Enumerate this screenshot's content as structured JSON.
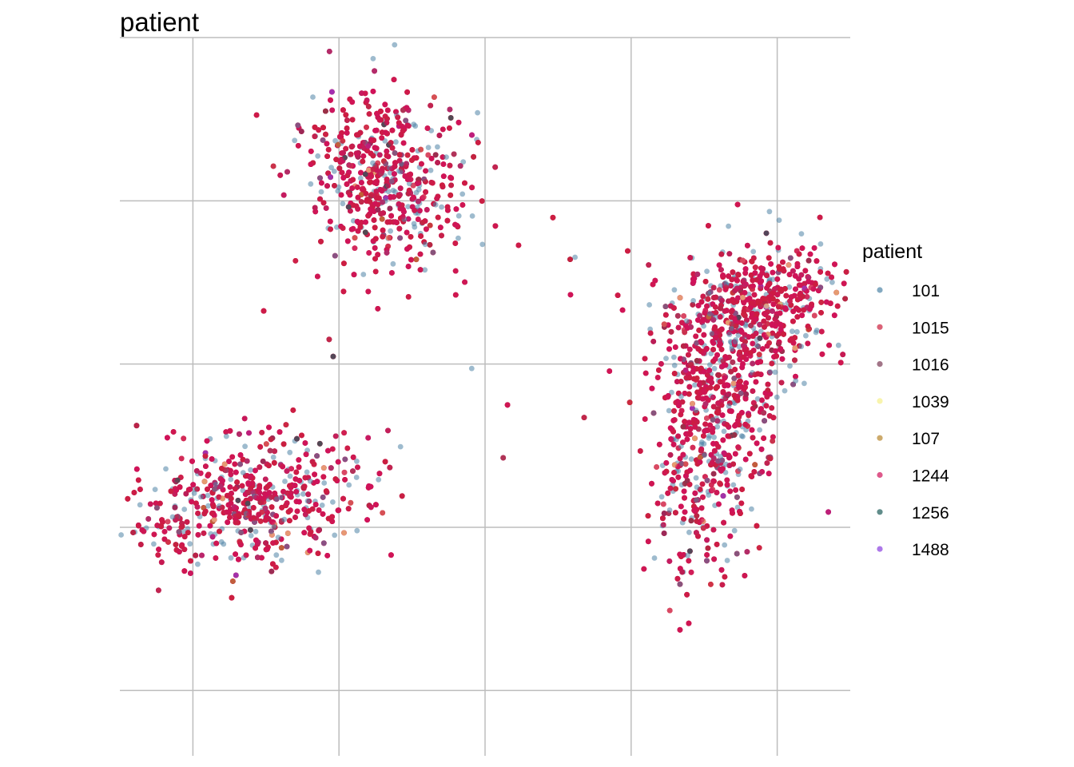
{
  "chart_data": {
    "type": "scatter",
    "title": "patient",
    "xlabel": "",
    "ylabel": "",
    "xlim": [
      -10,
      15
    ],
    "ylim": [
      -12,
      10
    ],
    "x_gridlines": [
      -7.5,
      -2.5,
      2.5,
      7.5,
      12.5
    ],
    "y_gridlines": [
      -10,
      -5,
      0,
      5,
      10
    ],
    "grid": true,
    "axis_tick_labels_shown": false,
    "legend": {
      "title": "patient",
      "placement": "right",
      "entries": [
        "101",
        "1015",
        "1016",
        "1039",
        "107",
        "1244",
        "1256",
        "1488"
      ]
    },
    "series": [
      {
        "name": "101",
        "color": "#4e84a6",
        "count": 900,
        "opacity": 0.55
      },
      {
        "name": "1015",
        "color": "#cc1f3d",
        "count": 4200,
        "opacity": 0.6
      },
      {
        "name": "1016",
        "color": "#7a3a55",
        "count": 120,
        "opacity": 0.6
      },
      {
        "name": "1039",
        "color": "#f5f08a",
        "count": 180,
        "opacity": 0.6
      },
      {
        "name": "107",
        "color": "#b8862e",
        "count": 70,
        "opacity": 0.65
      },
      {
        "name": "1244",
        "color": "#d0125a",
        "count": 6200,
        "opacity": 0.6
      },
      {
        "name": "1256",
        "color": "#1e5c5a",
        "count": 160,
        "opacity": 0.7
      },
      {
        "name": "1488",
        "color": "#8a3ee0",
        "count": 110,
        "opacity": 0.65
      }
    ],
    "clusters": [
      {
        "name": "upper",
        "cx": -0.9,
        "cy": 5.7,
        "sx": 1.5,
        "sy": 1.2,
        "rot": -0.65
      },
      {
        "name": "lower-left",
        "cx": -5.8,
        "cy": -4.3,
        "sx": 2.1,
        "sy": 0.95,
        "rot": 0.12
      },
      {
        "name": "right-top",
        "cx": 11.8,
        "cy": 1.5,
        "sx": 1.5,
        "sy": 0.95,
        "rot": 0.35
      },
      {
        "name": "right-bottom",
        "cx": 10.3,
        "cy": -2.0,
        "sx": 1.0,
        "sy": 2.1,
        "rot": -0.15
      }
    ]
  }
}
